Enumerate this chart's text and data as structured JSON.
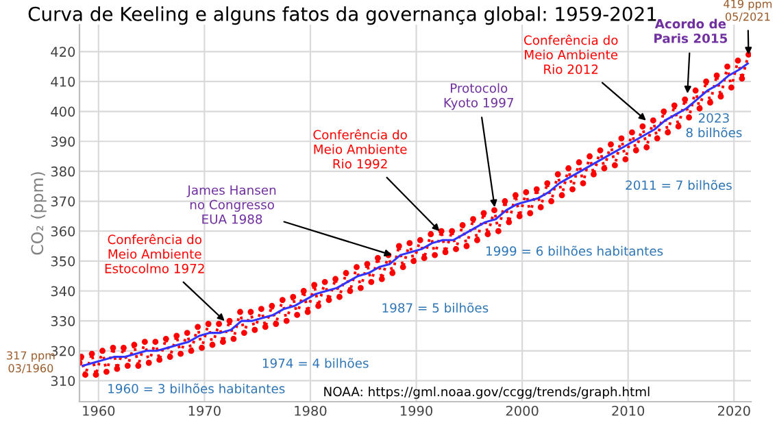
{
  "chart_data": {
    "type": "line",
    "title": "Curva de Keeling e alguns fatos da governança global: 1959-2021",
    "ylabel": "CO₂ (ppm)",
    "xlim": [
      1958.2,
      2021.6
    ],
    "xticks": [
      1960,
      1970,
      1980,
      1990,
      2000,
      2010,
      2020
    ],
    "ylim": [
      303,
      429
    ],
    "yticks": [
      310,
      320,
      330,
      340,
      350,
      360,
      370,
      380,
      390,
      400,
      410,
      420
    ],
    "grid": true,
    "series": [
      {
        "color": "#ff0000",
        "marker": "circle",
        "line_style": "dotted",
        "x": [
          1958.2,
          1958.37,
          1958.75,
          1959.37,
          1959.75,
          1960.37,
          1960.75,
          1961.37,
          1961.75,
          1962.37,
          1962.75,
          1963.37,
          1963.75,
          1964.37,
          1964.75,
          1965.37,
          1965.75,
          1966.37,
          1966.75,
          1967.37,
          1967.75,
          1968.37,
          1968.75,
          1969.37,
          1969.75,
          1970.37,
          1970.75,
          1971.37,
          1971.75,
          1972.37,
          1972.75,
          1973.37,
          1973.75,
          1974.37,
          1974.75,
          1975.37,
          1975.75,
          1976.37,
          1976.75,
          1977.37,
          1977.75,
          1978.37,
          1978.75,
          1979.37,
          1979.75,
          1980.37,
          1980.75,
          1981.37,
          1981.75,
          1982.37,
          1982.75,
          1983.37,
          1983.75,
          1984.37,
          1984.75,
          1985.37,
          1985.75,
          1986.37,
          1986.75,
          1987.37,
          1987.75,
          1988.37,
          1988.75,
          1989.37,
          1989.75,
          1990.37,
          1990.75,
          1991.37,
          1991.75,
          1992.37,
          1992.75,
          1993.37,
          1993.75,
          1994.37,
          1994.75,
          1995.37,
          1995.75,
          1996.37,
          1996.75,
          1997.37,
          1997.75,
          1998.37,
          1998.75,
          1999.37,
          1999.75,
          2000.37,
          2000.75,
          2001.37,
          2001.75,
          2002.37,
          2002.75,
          2003.37,
          2003.75,
          2004.37,
          2004.75,
          2005.37,
          2005.75,
          2006.37,
          2006.75,
          2007.37,
          2007.75,
          2008.37,
          2008.75,
          2009.37,
          2009.75,
          2010.37,
          2010.75,
          2011.37,
          2011.75,
          2012.37,
          2012.75,
          2013.37,
          2013.75,
          2014.37,
          2014.75,
          2015.37,
          2015.75,
          2016.37,
          2016.75,
          2017.37,
          2017.75,
          2018.37,
          2018.75,
          2019.37,
          2019.75,
          2020.37,
          2020.75,
          2021.37
        ],
        "values": [
          316,
          318,
          312,
          319,
          312,
          320,
          313,
          321,
          314,
          321,
          315,
          322,
          315,
          323,
          316,
          323,
          317,
          324,
          318,
          325,
          319,
          326,
          320,
          328,
          321,
          329,
          322,
          329,
          323,
          330,
          324,
          333,
          326,
          333,
          327,
          334,
          328,
          335,
          329,
          337,
          330,
          338,
          332,
          340,
          333,
          342,
          335,
          343,
          337,
          344,
          338,
          346,
          340,
          348,
          341,
          349,
          343,
          351,
          344,
          352,
          346,
          355,
          348,
          356,
          350,
          357,
          351,
          359,
          352,
          360,
          353,
          360,
          354,
          362,
          355,
          364,
          357,
          366,
          359,
          367,
          360,
          370,
          363,
          372,
          365,
          373,
          366,
          374,
          368,
          376,
          370,
          379,
          372,
          381,
          374,
          383,
          376,
          385,
          379,
          387,
          381,
          389,
          382,
          391,
          384,
          393,
          387,
          395,
          388,
          397,
          391,
          400,
          393,
          402,
          395,
          404,
          398,
          407,
          401,
          410,
          403,
          412,
          405,
          415,
          408,
          417,
          411,
          419
        ]
      },
      {
        "color": "#3333ff",
        "marker": "none",
        "line_style": "solid",
        "x": [
          1958.5,
          1959.5,
          1960.5,
          1961.5,
          1962.5,
          1963.5,
          1964.5,
          1965.5,
          1966.5,
          1967.5,
          1968.5,
          1969.5,
          1970.5,
          1971.5,
          1972.5,
          1973.5,
          1974.5,
          1975.5,
          1976.5,
          1977.5,
          1978.5,
          1979.5,
          1980.5,
          1981.5,
          1982.5,
          1983.5,
          1984.5,
          1985.5,
          1986.5,
          1987.5,
          1988.5,
          1989.5,
          1990.5,
          1991.5,
          1992.5,
          1993.5,
          1994.5,
          1995.5,
          1996.5,
          1997.5,
          1998.5,
          1999.5,
          2000.5,
          2001.5,
          2002.5,
          2003.5,
          2004.5,
          2005.5,
          2006.5,
          2007.5,
          2008.5,
          2009.5,
          2010.5,
          2011.5,
          2012.5,
          2013.5,
          2014.5,
          2015.5,
          2016.5,
          2017.5,
          2018.5,
          2019.5,
          2020.5,
          2021.3
        ],
        "values": [
          315,
          316,
          317,
          318,
          318,
          319,
          320,
          320,
          321,
          322,
          323,
          325,
          326,
          326,
          327,
          330,
          330,
          331,
          332,
          334,
          335,
          337,
          339,
          340,
          341,
          343,
          345,
          346,
          348,
          349,
          352,
          353,
          354,
          356,
          357,
          357,
          359,
          361,
          363,
          364,
          367,
          369,
          370,
          371,
          373,
          376,
          378,
          380,
          382,
          384,
          386,
          388,
          390,
          392,
          394,
          397,
          399,
          401,
          404,
          407,
          409,
          412,
          414,
          416
        ]
      }
    ],
    "annotations": [
      {
        "text": "Conferência do\nMeio Ambiente\nEstocolmo 1972",
        "x": 1971.9,
        "y": 330
      },
      {
        "text": "James Hansen\nno Congresso\nEUA 1988",
        "x": 1987.7,
        "y": 352
      },
      {
        "text": "Conferência do\nMeio Ambiente\nRio 1992",
        "x": 1992.2,
        "y": 360
      },
      {
        "text": "Protocolo\nKyoto 1997",
        "x": 1997.4,
        "y": 368
      },
      {
        "text": "Conferência do\nMeio Ambiente\nRio 2012",
        "x": 2011.7,
        "y": 397
      },
      {
        "text": "Acordo de\nParis 2015",
        "x": 2015.6,
        "y": 406
      },
      {
        "text": "419 ppm\n05/2021",
        "x": 2021.37,
        "y": 419
      },
      "317 ppm\n03/1960",
      "1960 = 3 bilhões habitantes",
      "1974 = 4 bilhões",
      "1987 = 5 bilhões",
      "1999 = 6 bilhões habitantes",
      "2011 = 7 bilhões",
      "2023\n8 bilhões",
      "NOAA: https://gml.noaa.gov/ccgg/trends/graph.html"
    ]
  }
}
